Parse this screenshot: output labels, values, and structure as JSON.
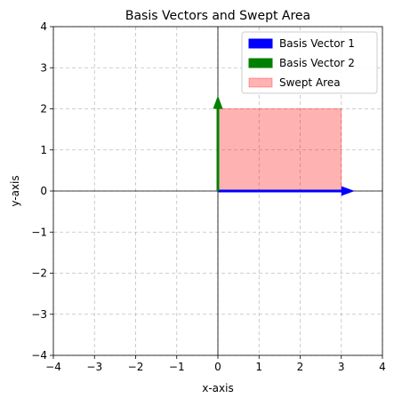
{
  "chart_data": {
    "type": "vector-plot",
    "title": "Basis Vectors and Swept Area",
    "xlabel": "x-axis",
    "ylabel": "y-axis",
    "xlim": [
      -4,
      4
    ],
    "ylim": [
      -4,
      4
    ],
    "xticks": [
      -4,
      -3,
      -2,
      -1,
      0,
      1,
      2,
      3,
      4
    ],
    "yticks": [
      -4,
      -3,
      -2,
      -1,
      0,
      1,
      2,
      3,
      4
    ],
    "grid": true,
    "legend_position": "top-right",
    "series": [
      {
        "name": "Basis Vector 1",
        "kind": "vector",
        "origin": [
          0,
          0
        ],
        "vector": [
          3,
          0
        ],
        "color": "#0000ff"
      },
      {
        "name": "Basis Vector 2",
        "kind": "vector",
        "origin": [
          0,
          0
        ],
        "vector": [
          0,
          2
        ],
        "color": "#008000"
      },
      {
        "name": "Swept Area",
        "kind": "rectangle",
        "x": [
          0,
          3
        ],
        "y": [
          0,
          2
        ],
        "color": "#ff0000",
        "alpha": 0.3
      }
    ]
  }
}
